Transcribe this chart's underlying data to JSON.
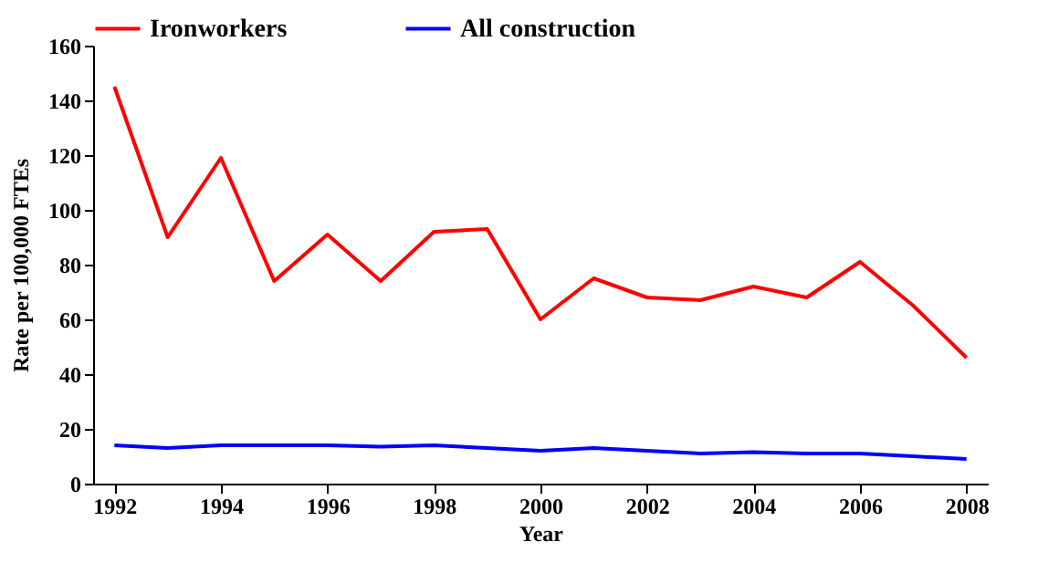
{
  "chart_data": {
    "type": "line",
    "xlabel": "Year",
    "ylabel": "Rate per 100,000 FTEs",
    "x": [
      1992,
      1993,
      1994,
      1995,
      1996,
      1997,
      1998,
      1999,
      2000,
      2001,
      2002,
      2003,
      2004,
      2005,
      2006,
      2007,
      2008
    ],
    "series": [
      {
        "name": "Ironworkers",
        "color": "#ff0000",
        "values": [
          145,
          90,
          119,
          74,
          91,
          74,
          92,
          93,
          60,
          75,
          68,
          67,
          72,
          68,
          81,
          65,
          46
        ]
      },
      {
        "name": "All construction",
        "color": "#0000ff",
        "values": [
          14,
          13,
          14,
          14,
          14,
          13.5,
          14,
          13,
          12,
          13,
          12,
          11,
          11.5,
          11,
          11,
          10,
          9
        ]
      }
    ],
    "xlim": [
      1991.6,
      2008.4
    ],
    "xticks": [
      1992,
      1994,
      1996,
      1998,
      2000,
      2002,
      2004,
      2006,
      2008
    ],
    "ylim": [
      0,
      160
    ],
    "yticks": [
      0,
      20,
      40,
      60,
      80,
      100,
      120,
      140,
      160
    ],
    "grid": false,
    "legend": "top",
    "marker": "none",
    "line_style": "solid"
  }
}
